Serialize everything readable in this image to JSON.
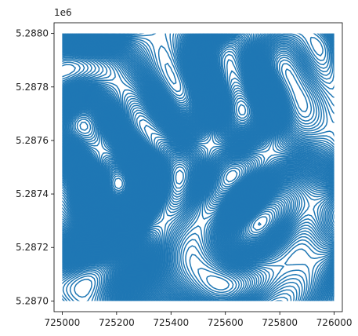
{
  "chart_data": {
    "type": "line",
    "title": "",
    "xlabel": "",
    "ylabel": "",
    "description_free": true,
    "series_color": "#1f77b4",
    "x_axis": {
      "lim": [
        724970,
        726030
      ],
      "ticks": [
        725000,
        725200,
        725400,
        725600,
        725800,
        726000
      ],
      "tick_labels": [
        "725000",
        "725200",
        "725400",
        "725600",
        "725800",
        "726000"
      ]
    },
    "y_axis": {
      "lim": [
        5286960,
        5288040
      ],
      "ticks": [
        5287000,
        5287200,
        5287400,
        5287600,
        5287800,
        5288000
      ],
      "tick_labels": [
        "5.2870",
        "5.2872",
        "5.2874",
        "5.2876",
        "5.2878",
        "5.2880"
      ],
      "offset_text": "1e6"
    },
    "extent": {
      "x": [
        725000,
        726000
      ],
      "y": [
        5287000,
        5288000
      ]
    }
  }
}
